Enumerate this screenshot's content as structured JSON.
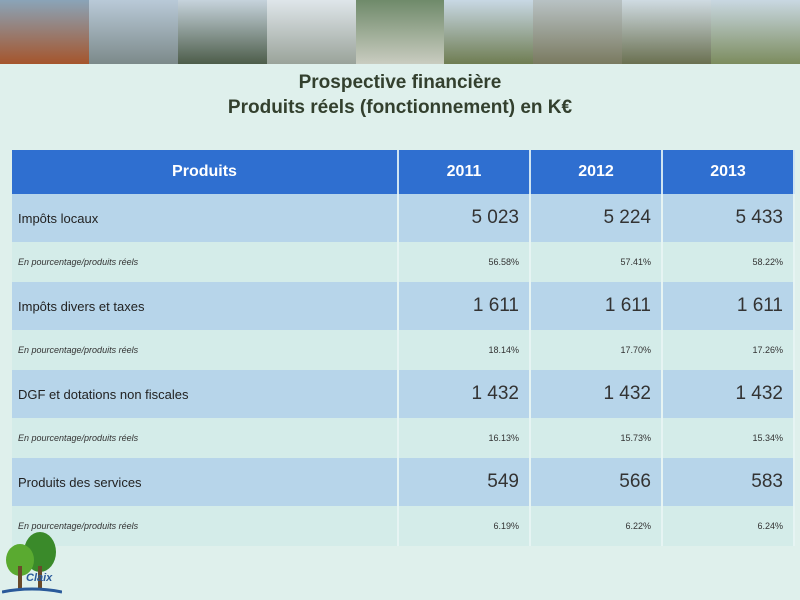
{
  "slide": {
    "title_line1": "Prospective financière",
    "title_line2": "Produits réels (fonctionnement) en K€",
    "logo_text": "Claix"
  },
  "table": {
    "headers": [
      "Produits",
      "2011",
      "2012",
      "2013"
    ],
    "rows": [
      {
        "label": "Impôts locaux",
        "values": [
          "5 023",
          "5 224",
          "5 433"
        ],
        "pct_label": "En pourcentage/produits réels",
        "pct": [
          "56.58%",
          "57.41%",
          "58.22%"
        ]
      },
      {
        "label": "Impôts divers et taxes",
        "values": [
          "1 611",
          "1 611",
          "1 611"
        ],
        "pct_label": "En pourcentage/produits réels",
        "pct": [
          "18.14%",
          "17.70%",
          "17.26%"
        ]
      },
      {
        "label": "DGF et dotations non fiscales",
        "values": [
          "1 432",
          "1 432",
          "1 432"
        ],
        "pct_label": "En pourcentage/produits réels",
        "pct": [
          "16.13%",
          "15.73%",
          "15.34%"
        ]
      },
      {
        "label": "Produits des services",
        "values": [
          "549",
          "566",
          "583"
        ],
        "pct_label": "En pourcentage/produits réels",
        "pct": [
          "6.19%",
          "6.22%",
          "6.24%"
        ]
      }
    ]
  },
  "colors": {
    "header_bg": "#2f6fd0",
    "row_bg": "#b7d5ea",
    "pct_bg": "#d4ece9"
  }
}
